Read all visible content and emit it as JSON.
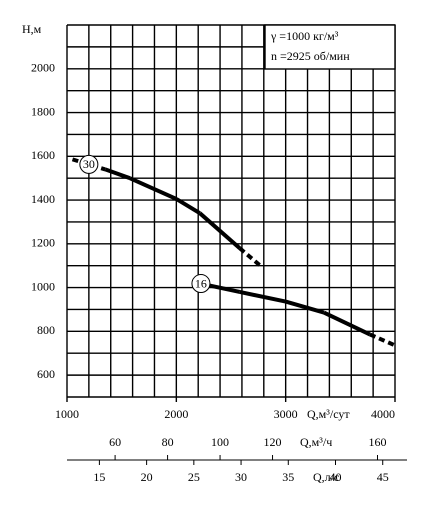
{
  "chart_data": {
    "type": "line",
    "y_label": "Н,м",
    "x_label": "Q,м³/сут",
    "x2_label": "Q,м³/ч",
    "x3_label": "Q,л/с",
    "annotations": [
      "γ =1000  кг/м³",
      "n =2925  об/мин"
    ],
    "xlim": [
      1000,
      4000
    ],
    "xticks": [
      1000,
      2000,
      3000,
      4000
    ],
    "x2lim": [
      41.67,
      166.67
    ],
    "x2ticks": [
      60,
      80,
      100,
      120,
      160
    ],
    "x3lim": [
      11.57,
      46.3
    ],
    "x3ticks": [
      15,
      20,
      25,
      30,
      35,
      40,
      45
    ],
    "ylim": [
      500,
      2200
    ],
    "yticks": [
      600,
      800,
      1000,
      1200,
      1400,
      1600,
      1800,
      2000
    ],
    "xgrid": [
      1000,
      1200,
      1400,
      1600,
      1800,
      2000,
      2200,
      2400,
      2600,
      2800,
      3000,
      3200,
      3400,
      3600,
      3800,
      4000
    ],
    "ygrid": [
      500,
      600,
      700,
      800,
      900,
      1000,
      1100,
      1200,
      1300,
      1400,
      1500,
      1600,
      1700,
      1800,
      1900,
      2000,
      2100,
      2200
    ],
    "grid": true,
    "series": [
      {
        "name": "30",
        "color": "#000000",
        "x": [
          1050,
          1350,
          1575,
          2000,
          2215,
          2580,
          2780
        ],
        "values": [
          1586,
          1540,
          1500,
          1405,
          1340,
          1180,
          1095
        ],
        "segment_styles": [
          "dashed",
          "solid",
          "solid",
          "solid",
          "solid",
          "dashed"
        ]
      },
      {
        "name": "16",
        "color": "#000000",
        "x": [
          2150,
          2300,
          2580,
          3000,
          3350,
          3770,
          4000
        ],
        "values": [
          1027,
          1010,
          980,
          936,
          886,
          786,
          736
        ],
        "segment_styles": [
          "dashed",
          "solid",
          "solid",
          "solid",
          "solid",
          "dashed"
        ]
      }
    ]
  }
}
